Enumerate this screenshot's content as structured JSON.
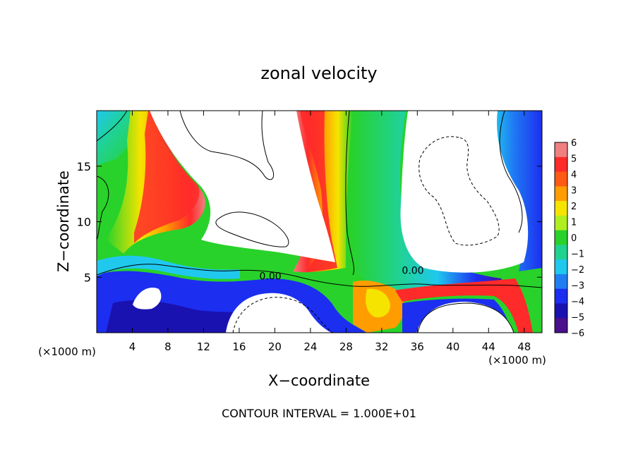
{
  "chart_data": {
    "type": "heatmap",
    "title": "zonal velocity",
    "xlabel": "X−coordinate",
    "ylabel": "Z−coordinate",
    "x_unit_left": "(×1000 m)",
    "x_unit_right": "(×1000 m)",
    "xlim": [
      0,
      50
    ],
    "ylim": [
      0,
      20
    ],
    "x_ticks": [
      4,
      8,
      12,
      16,
      20,
      24,
      28,
      32,
      36,
      40,
      44,
      48
    ],
    "y_ticks": [
      5,
      10,
      15
    ],
    "contour_labels": [
      {
        "text": "0.00",
        "x": 19.5,
        "z": 5.0
      },
      {
        "text": "0.00",
        "x": 35.5,
        "z": 5.5
      }
    ],
    "footer": "CONTOUR INTERVAL = 1.000E+01",
    "colorbar": {
      "labels": [
        "6",
        "5",
        "4",
        "3",
        "2",
        "1",
        "0",
        "−1",
        "−2",
        "−3",
        "−4",
        "−5",
        "−6"
      ],
      "colors": [
        "#f08080",
        "#ff2a2a",
        "#ff5a14",
        "#ff9c00",
        "#f5e400",
        "#b0ee20",
        "#28d22a",
        "#20d290",
        "#20c8ee",
        "#1f7ef2",
        "#1c2ef0",
        "#1a12b0",
        "#4a0f8a"
      ]
    },
    "colors": {
      "wind_strong_pos": "#ff2a2a",
      "wind_weak": "#28d22a",
      "wind_strong_neg": "#1c2ef0",
      "saturated": "#ffffff",
      "contour": "#000000"
    }
  }
}
